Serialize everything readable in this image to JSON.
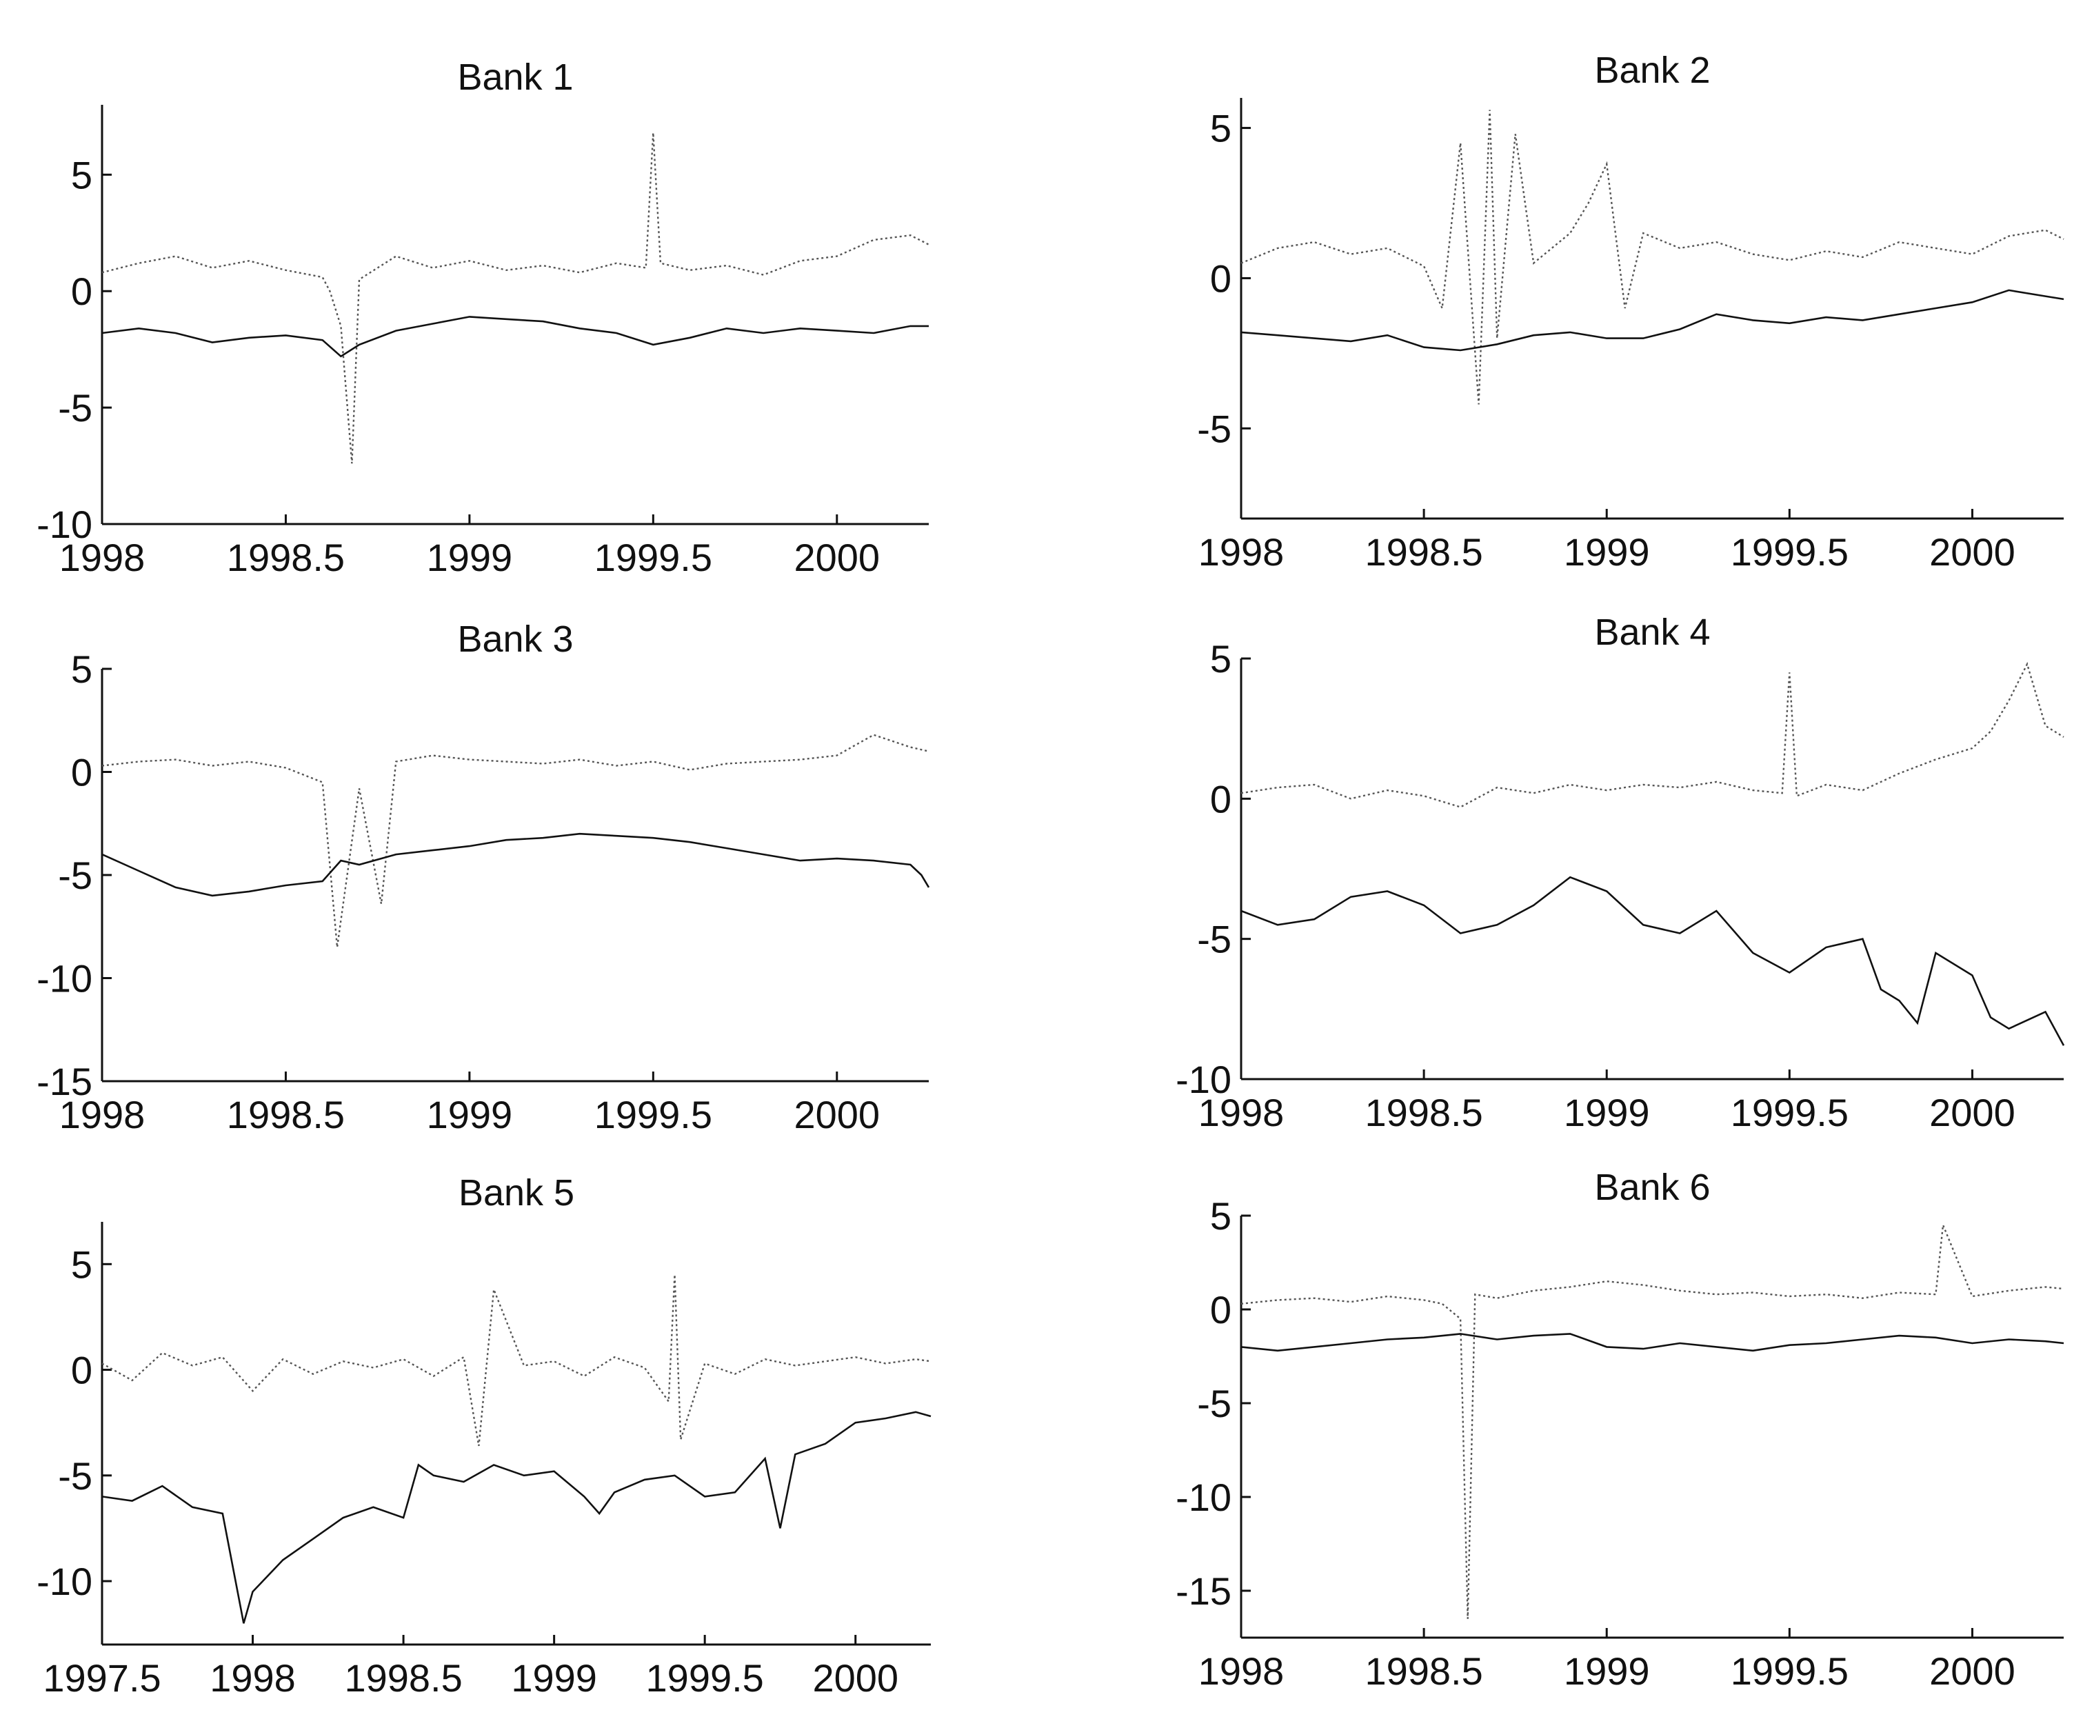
{
  "chart_data": [
    {
      "type": "line",
      "title": "Bank 1",
      "xlim": [
        1998,
        2000.25
      ],
      "ylim": [
        -10,
        8
      ],
      "xticks": [
        1998,
        1998.5,
        1999,
        1999.5,
        2000
      ],
      "xtick_labels": [
        "1998",
        "1998.5",
        "1999",
        "1999.5",
        "2000"
      ],
      "yticks": [
        5,
        0,
        -5,
        -10
      ],
      "ytick_labels": [
        "5",
        "0",
        "-5",
        "-10"
      ],
      "grid": false,
      "legend": "none",
      "series": [
        {
          "style": "dotted",
          "x": [
            1998,
            1998.1,
            1998.2,
            1998.3,
            1998.4,
            1998.5,
            1998.6,
            1998.62,
            1998.65,
            1998.68,
            1998.7,
            1998.8,
            1998.9,
            1999,
            1999.1,
            1999.2,
            1999.3,
            1999.4,
            1999.48,
            1999.5,
            1999.52,
            1999.6,
            1999.7,
            1999.8,
            1999.9,
            2000,
            2000.1,
            2000.2,
            2000.25
          ],
          "y": [
            0.8,
            1.2,
            1.5,
            1.0,
            1.3,
            0.9,
            0.6,
            0.0,
            -1.5,
            -7.4,
            0.5,
            1.5,
            1.0,
            1.3,
            0.9,
            1.1,
            0.8,
            1.2,
            1.0,
            6.8,
            1.2,
            0.9,
            1.1,
            0.7,
            1.3,
            1.5,
            2.2,
            2.4,
            2.0
          ]
        },
        {
          "style": "solid",
          "x": [
            1998,
            1998.1,
            1998.2,
            1998.3,
            1998.4,
            1998.5,
            1998.6,
            1998.65,
            1998.7,
            1998.8,
            1998.9,
            1999,
            1999.1,
            1999.2,
            1999.3,
            1999.4,
            1999.5,
            1999.6,
            1999.7,
            1999.8,
            1999.9,
            2000,
            2000.1,
            2000.2,
            2000.25
          ],
          "y": [
            -1.8,
            -1.6,
            -1.8,
            -2.2,
            -2.0,
            -1.9,
            -2.1,
            -2.8,
            -2.3,
            -1.7,
            -1.4,
            -1.1,
            -1.2,
            -1.3,
            -1.6,
            -1.8,
            -2.3,
            -2.0,
            -1.6,
            -1.8,
            -1.6,
            -1.7,
            -1.8,
            -1.5,
            -1.5
          ]
        }
      ]
    },
    {
      "type": "line",
      "title": "Bank 2",
      "xlim": [
        1998,
        2000.25
      ],
      "ylim": [
        -8,
        6
      ],
      "xticks": [
        1998,
        1998.5,
        1999,
        1999.5,
        2000
      ],
      "xtick_labels": [
        "1998",
        "1998.5",
        "1999",
        "1999.5",
        "2000"
      ],
      "yticks": [
        5,
        0,
        -5
      ],
      "ytick_labels": [
        "5",
        "0",
        "-5"
      ],
      "grid": false,
      "legend": "none",
      "series": [
        {
          "style": "dotted",
          "x": [
            1998,
            1998.1,
            1998.2,
            1998.3,
            1998.4,
            1998.5,
            1998.55,
            1998.6,
            1998.65,
            1998.68,
            1998.7,
            1998.75,
            1998.8,
            1998.9,
            1998.95,
            1999,
            1999.05,
            1999.1,
            1999.2,
            1999.3,
            1999.4,
            1999.5,
            1999.6,
            1999.7,
            1999.8,
            1999.9,
            2000,
            2000.1,
            2000.2,
            2000.25
          ],
          "y": [
            0.5,
            1.0,
            1.2,
            0.8,
            1.0,
            0.4,
            -1.0,
            4.5,
            -4.2,
            5.6,
            -2.0,
            4.8,
            0.5,
            1.5,
            2.5,
            3.8,
            -1.0,
            1.5,
            1.0,
            1.2,
            0.8,
            0.6,
            0.9,
            0.7,
            1.2,
            1.0,
            0.8,
            1.4,
            1.6,
            1.3
          ]
        },
        {
          "style": "solid",
          "x": [
            1998,
            1998.1,
            1998.2,
            1998.3,
            1998.4,
            1998.5,
            1998.6,
            1998.7,
            1998.8,
            1998.9,
            1999,
            1999.1,
            1999.2,
            1999.3,
            1999.4,
            1999.5,
            1999.6,
            1999.7,
            1999.8,
            1999.9,
            2000,
            2000.1,
            2000.2,
            2000.25
          ],
          "y": [
            -1.8,
            -1.9,
            -2.0,
            -2.1,
            -1.9,
            -2.3,
            -2.4,
            -2.2,
            -1.9,
            -1.8,
            -2.0,
            -2.0,
            -1.7,
            -1.2,
            -1.4,
            -1.5,
            -1.3,
            -1.4,
            -1.2,
            -1.0,
            -0.8,
            -0.4,
            -0.6,
            -0.7
          ]
        }
      ]
    },
    {
      "type": "line",
      "title": "Bank 3",
      "xlim": [
        1998,
        2000.25
      ],
      "ylim": [
        -15,
        5
      ],
      "xticks": [
        1998,
        1998.5,
        1999,
        1999.5,
        2000
      ],
      "xtick_labels": [
        "1998",
        "1998.5",
        "1999",
        "1999.5",
        "2000"
      ],
      "yticks": [
        5,
        0,
        -5,
        -10,
        -15
      ],
      "ytick_labels": [
        "5",
        "0",
        "-5",
        "-10",
        "-15"
      ],
      "grid": false,
      "legend": "none",
      "series": [
        {
          "style": "dotted",
          "x": [
            1998,
            1998.1,
            1998.2,
            1998.3,
            1998.4,
            1998.5,
            1998.6,
            1998.64,
            1998.7,
            1998.76,
            1998.8,
            1998.9,
            1999,
            1999.1,
            1999.2,
            1999.3,
            1999.4,
            1999.5,
            1999.6,
            1999.7,
            1999.8,
            1999.9,
            2000,
            2000.1,
            2000.2,
            2000.25
          ],
          "y": [
            0.3,
            0.5,
            0.6,
            0.3,
            0.5,
            0.2,
            -0.5,
            -8.5,
            -0.8,
            -6.4,
            0.5,
            0.8,
            0.6,
            0.5,
            0.4,
            0.6,
            0.3,
            0.5,
            0.1,
            0.4,
            0.5,
            0.6,
            0.8,
            1.8,
            1.2,
            1.0
          ]
        },
        {
          "style": "solid",
          "x": [
            1998,
            1998.1,
            1998.2,
            1998.3,
            1998.4,
            1998.5,
            1998.6,
            1998.65,
            1998.7,
            1998.8,
            1998.9,
            1999,
            1999.1,
            1999.2,
            1999.3,
            1999.4,
            1999.5,
            1999.6,
            1999.7,
            1999.8,
            1999.9,
            2000,
            2000.1,
            2000.2,
            2000.23,
            2000.25
          ],
          "y": [
            -4.0,
            -4.8,
            -5.6,
            -6.0,
            -5.8,
            -5.5,
            -5.3,
            -4.3,
            -4.5,
            -4.0,
            -3.8,
            -3.6,
            -3.3,
            -3.2,
            -3.0,
            -3.1,
            -3.2,
            -3.4,
            -3.7,
            -4.0,
            -4.3,
            -4.2,
            -4.3,
            -4.5,
            -5.0,
            -5.6
          ]
        }
      ]
    },
    {
      "type": "line",
      "title": "Bank 4",
      "xlim": [
        1998,
        2000.25
      ],
      "ylim": [
        -10,
        5
      ],
      "xticks": [
        1998,
        1998.5,
        1999,
        1999.5,
        2000
      ],
      "xtick_labels": [
        "1998",
        "1998.5",
        "1999",
        "1999.5",
        "2000"
      ],
      "yticks": [
        5,
        0,
        -5,
        -10
      ],
      "ytick_labels": [
        "5",
        "0",
        "-5",
        "-10"
      ],
      "grid": false,
      "legend": "none",
      "series": [
        {
          "style": "dotted",
          "x": [
            1998,
            1998.1,
            1998.2,
            1998.3,
            1998.4,
            1998.5,
            1998.6,
            1998.7,
            1998.8,
            1998.9,
            1999,
            1999.1,
            1999.2,
            1999.3,
            1999.4,
            1999.48,
            1999.5,
            1999.52,
            1999.6,
            1999.7,
            1999.8,
            1999.9,
            2000,
            2000.05,
            2000.1,
            2000.15,
            2000.2,
            2000.25
          ],
          "y": [
            0.2,
            0.4,
            0.5,
            0.0,
            0.3,
            0.1,
            -0.3,
            0.4,
            0.2,
            0.5,
            0.3,
            0.5,
            0.4,
            0.6,
            0.3,
            0.2,
            4.5,
            0.1,
            0.5,
            0.3,
            0.9,
            1.4,
            1.8,
            2.4,
            3.5,
            4.8,
            2.6,
            2.2
          ]
        },
        {
          "style": "solid",
          "x": [
            1998,
            1998.1,
            1998.2,
            1998.3,
            1998.4,
            1998.5,
            1998.6,
            1998.7,
            1998.8,
            1998.9,
            1999,
            1999.1,
            1999.2,
            1999.3,
            1999.4,
            1999.5,
            1999.6,
            1999.7,
            1999.75,
            1999.8,
            1999.85,
            1999.9,
            2000,
            2000.05,
            2000.1,
            2000.2,
            2000.25
          ],
          "y": [
            -4.0,
            -4.5,
            -4.3,
            -3.5,
            -3.3,
            -3.8,
            -4.8,
            -4.5,
            -3.8,
            -2.8,
            -3.3,
            -4.5,
            -4.8,
            -4.0,
            -5.5,
            -6.2,
            -5.3,
            -5.0,
            -6.8,
            -7.2,
            -8.0,
            -5.5,
            -6.3,
            -7.8,
            -8.2,
            -7.6,
            -8.8
          ]
        }
      ]
    },
    {
      "type": "line",
      "title": "Bank 5",
      "xlim": [
        1997.5,
        2000.25
      ],
      "ylim": [
        -13,
        7
      ],
      "xticks": [
        1997.5,
        1998,
        1998.5,
        1999,
        1999.5,
        2000
      ],
      "xtick_labels": [
        "1997.5",
        "1998",
        "1998.5",
        "1999",
        "1999.5",
        "2000"
      ],
      "yticks": [
        5,
        0,
        -5,
        -10
      ],
      "ytick_labels": [
        "5",
        "0",
        "-5",
        "-10"
      ],
      "grid": false,
      "legend": "none",
      "series": [
        {
          "style": "dotted",
          "x": [
            1997.5,
            1997.6,
            1997.7,
            1997.8,
            1997.9,
            1998,
            1998.1,
            1998.2,
            1998.3,
            1998.4,
            1998.5,
            1998.6,
            1998.7,
            1998.75,
            1998.8,
            1998.9,
            1999,
            1999.1,
            1999.2,
            1999.3,
            1999.38,
            1999.4,
            1999.42,
            1999.5,
            1999.6,
            1999.7,
            1999.8,
            1999.9,
            2000,
            2000.1,
            2000.2,
            2000.25
          ],
          "y": [
            0.3,
            -0.5,
            0.8,
            0.2,
            0.6,
            -1.0,
            0.5,
            -0.2,
            0.4,
            0.1,
            0.5,
            -0.3,
            0.6,
            -3.6,
            3.8,
            0.2,
            0.4,
            -0.3,
            0.6,
            0.1,
            -1.5,
            4.5,
            -3.3,
            0.3,
            -0.2,
            0.5,
            0.2,
            0.4,
            0.6,
            0.3,
            0.5,
            0.4
          ]
        },
        {
          "style": "solid",
          "x": [
            1997.5,
            1997.6,
            1997.7,
            1997.8,
            1997.9,
            1997.97,
            1998,
            1998.1,
            1998.2,
            1998.3,
            1998.4,
            1998.5,
            1998.55,
            1998.6,
            1998.7,
            1998.8,
            1998.9,
            1999,
            1999.1,
            1999.15,
            1999.2,
            1999.3,
            1999.4,
            1999.5,
            1999.6,
            1999.7,
            1999.75,
            1999.8,
            1999.9,
            2000,
            2000.1,
            2000.2,
            2000.25
          ],
          "y": [
            -6.0,
            -6.2,
            -5.5,
            -6.5,
            -6.8,
            -12.0,
            -10.5,
            -9.0,
            -8.0,
            -7.0,
            -6.5,
            -7.0,
            -4.5,
            -5.0,
            -5.3,
            -4.5,
            -5.0,
            -4.8,
            -6.0,
            -6.8,
            -5.8,
            -5.2,
            -5.0,
            -6.0,
            -5.8,
            -4.2,
            -7.5,
            -4.0,
            -3.5,
            -2.5,
            -2.3,
            -2.0,
            -2.2
          ]
        }
      ]
    },
    {
      "type": "line",
      "title": "Bank 6",
      "xlim": [
        1998,
        2000.25
      ],
      "ylim": [
        -17.5,
        5
      ],
      "xticks": [
        1998,
        1998.5,
        1999,
        1999.5,
        2000
      ],
      "xtick_labels": [
        "1998",
        "1998.5",
        "1999",
        "1999.5",
        "2000"
      ],
      "yticks": [
        5,
        0,
        -5,
        -10,
        -15
      ],
      "ytick_labels": [
        "5",
        "0",
        "-5",
        "-10",
        "-15"
      ],
      "grid": false,
      "legend": "none",
      "series": [
        {
          "style": "dotted",
          "x": [
            1998,
            1998.1,
            1998.2,
            1998.3,
            1998.4,
            1998.5,
            1998.55,
            1998.6,
            1998.62,
            1998.64,
            1998.7,
            1998.8,
            1998.9,
            1999,
            1999.1,
            1999.2,
            1999.3,
            1999.4,
            1999.5,
            1999.6,
            1999.7,
            1999.8,
            1999.9,
            1999.92,
            2000,
            2000.1,
            2000.2,
            2000.25
          ],
          "y": [
            0.3,
            0.5,
            0.6,
            0.4,
            0.7,
            0.5,
            0.3,
            -0.5,
            -16.5,
            0.8,
            0.6,
            1.0,
            1.2,
            1.5,
            1.3,
            1.0,
            0.8,
            0.9,
            0.7,
            0.8,
            0.6,
            0.9,
            0.8,
            4.5,
            0.7,
            1.0,
            1.2,
            1.1
          ]
        },
        {
          "style": "solid",
          "x": [
            1998,
            1998.1,
            1998.2,
            1998.3,
            1998.4,
            1998.5,
            1998.6,
            1998.7,
            1998.8,
            1998.9,
            1999,
            1999.1,
            1999.2,
            1999.3,
            1999.4,
            1999.5,
            1999.6,
            1999.7,
            1999.8,
            1999.9,
            2000,
            2000.1,
            2000.2,
            2000.25
          ],
          "y": [
            -2.0,
            -2.2,
            -2.0,
            -1.8,
            -1.6,
            -1.5,
            -1.3,
            -1.6,
            -1.4,
            -1.3,
            -2.0,
            -2.1,
            -1.8,
            -2.0,
            -2.2,
            -1.9,
            -1.8,
            -1.6,
            -1.4,
            -1.5,
            -1.8,
            -1.6,
            -1.7,
            -1.8
          ]
        }
      ]
    }
  ]
}
